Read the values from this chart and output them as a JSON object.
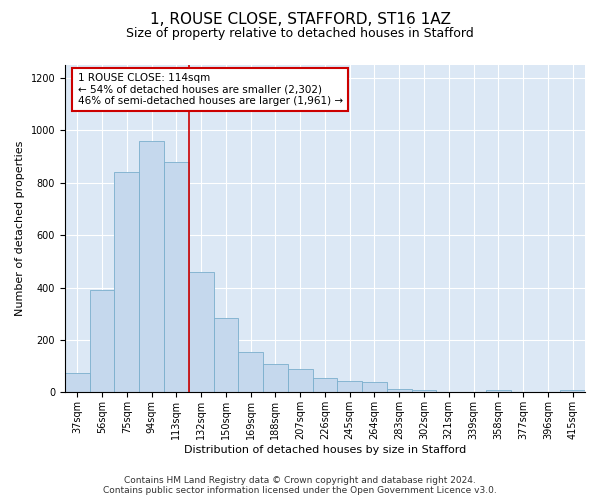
{
  "title": "1, ROUSE CLOSE, STAFFORD, ST16 1AZ",
  "subtitle": "Size of property relative to detached houses in Stafford",
  "xlabel": "Distribution of detached houses by size in Stafford",
  "ylabel": "Number of detached properties",
  "categories": [
    "37sqm",
    "56sqm",
    "75sqm",
    "94sqm",
    "113sqm",
    "132sqm",
    "150sqm",
    "169sqm",
    "188sqm",
    "207sqm",
    "226sqm",
    "245sqm",
    "264sqm",
    "283sqm",
    "302sqm",
    "321sqm",
    "339sqm",
    "358sqm",
    "377sqm",
    "396sqm",
    "415sqm"
  ],
  "values": [
    75,
    390,
    840,
    960,
    880,
    460,
    285,
    155,
    110,
    90,
    55,
    45,
    40,
    15,
    10,
    0,
    0,
    10,
    0,
    0,
    10
  ],
  "bar_color": "#c5d8ed",
  "bar_edge_color": "#7aaecd",
  "vline_color": "#cc0000",
  "annotation_text": "1 ROUSE CLOSE: 114sqm\n← 54% of detached houses are smaller (2,302)\n46% of semi-detached houses are larger (1,961) →",
  "annotation_box_color": "#ffffff",
  "annotation_box_edge": "#cc0000",
  "ylim": [
    0,
    1250
  ],
  "yticks": [
    0,
    200,
    400,
    600,
    800,
    1000,
    1200
  ],
  "footer_line1": "Contains HM Land Registry data © Crown copyright and database right 2024.",
  "footer_line2": "Contains public sector information licensed under the Open Government Licence v3.0.",
  "plot_bg_color": "#dce8f5",
  "title_fontsize": 11,
  "subtitle_fontsize": 9,
  "axis_label_fontsize": 8,
  "tick_fontsize": 7,
  "annotation_fontsize": 7.5,
  "footer_fontsize": 6.5
}
